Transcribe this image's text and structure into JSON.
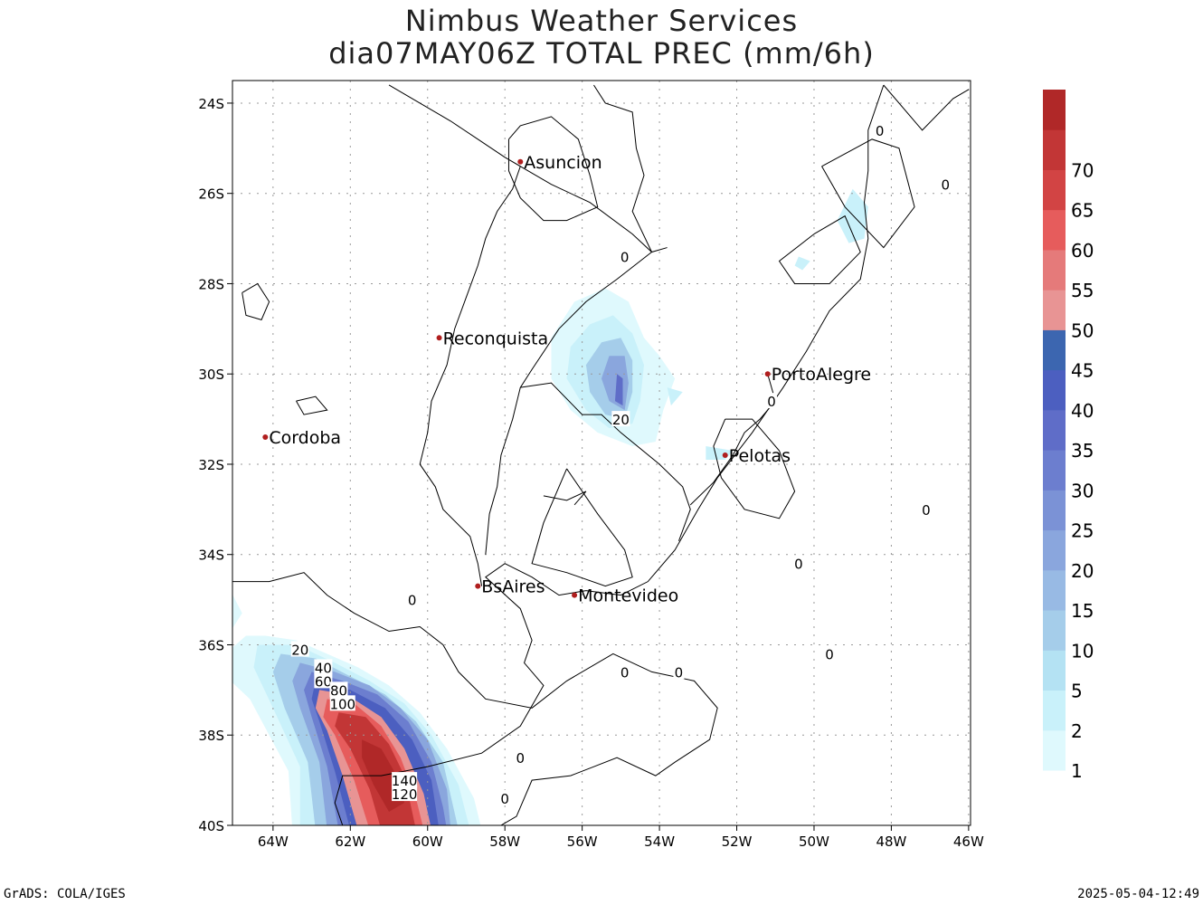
{
  "title": {
    "line1": "Nimbus Weather Services",
    "line2": "dia07MAY06Z TOTAL PREC (mm/6h)"
  },
  "axes": {
    "lat_labels": [
      "24S",
      "26S",
      "28S",
      "30S",
      "32S",
      "34S",
      "36S",
      "38S",
      "40S"
    ],
    "lon_labels": [
      "64W",
      "62W",
      "60W",
      "58W",
      "56W",
      "54W",
      "52W",
      "50W",
      "48W",
      "46W"
    ]
  },
  "cities": [
    {
      "name": "Asuncion",
      "lon": -57.6,
      "lat": -25.3
    },
    {
      "name": "Reconquista",
      "lon": -59.7,
      "lat": -29.2
    },
    {
      "name": "Cordoba",
      "lon": -64.2,
      "lat": -31.4
    },
    {
      "name": "PortoAlegre",
      "lon": -51.2,
      "lat": -30.0
    },
    {
      "name": "Pelotas",
      "lon": -52.3,
      "lat": -31.8
    },
    {
      "name": "BsAires",
      "lon": -58.7,
      "lat": -34.7
    },
    {
      "name": "Montevideo",
      "lon": -56.2,
      "lat": -34.9
    }
  ],
  "contour_labels": [
    "0",
    "20",
    "40",
    "60",
    "80",
    "100",
    "120",
    "140"
  ],
  "colorbar": {
    "labels": [
      "1",
      "2",
      "5",
      "10",
      "15",
      "20",
      "25",
      "30",
      "35",
      "40",
      "45",
      "50",
      "55",
      "60",
      "65",
      "70"
    ],
    "colors": [
      "#dff9fd",
      "#c9f1fa",
      "#b4e2f3",
      "#a5cdea",
      "#98bae4",
      "#8aa6dd",
      "#7b92d6",
      "#6c7ecf",
      "#5f6dc8",
      "#4c5fc0",
      "#3c66b0",
      "#e89494",
      "#e57a7a",
      "#e65c5c",
      "#d24444",
      "#c23636",
      "#b02828"
    ]
  },
  "footer": {
    "left": "GrADS: COLA/IGES",
    "right": "2025-05-04-12:49"
  }
}
